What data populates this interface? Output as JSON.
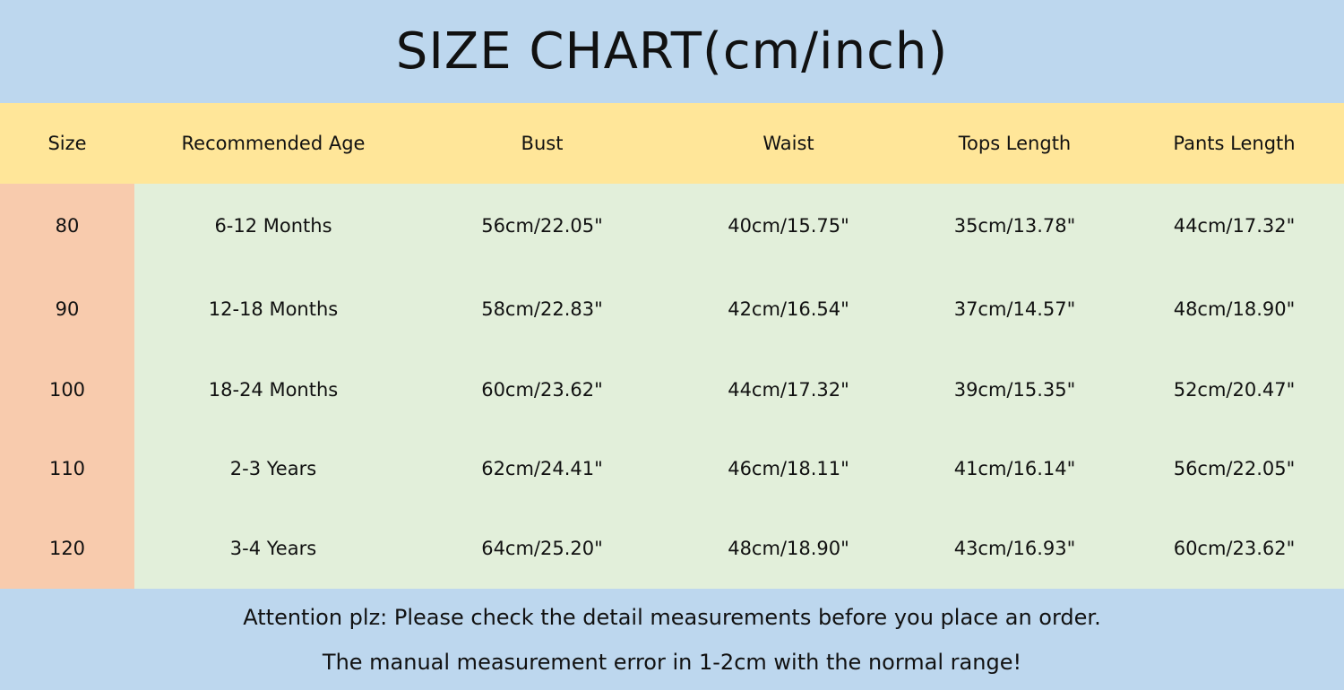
{
  "title": "SIZE CHART(cm/inch)",
  "colors": {
    "title_bg": "#bdd7ee",
    "header_bg": "#ffe699",
    "size_col_bg": "#f8cbad",
    "body_bg": "#e2efda",
    "footer_bg": "#bdd7ee"
  },
  "headers": [
    "Size",
    "Recommended Age",
    "Bust",
    "Waist",
    "Tops Length",
    "Pants Length"
  ],
  "rows": [
    [
      "80",
      "6-12 Months",
      "56cm/22.05\"",
      "40cm/15.75\"",
      "35cm/13.78\"",
      "44cm/17.32\""
    ],
    [
      "90",
      "12-18 Months",
      "58cm/22.83\"",
      "42cm/16.54\"",
      "37cm/14.57\"",
      "48cm/18.90\""
    ],
    [
      "100",
      "18-24 Months",
      "60cm/23.62\"",
      "44cm/17.32\"",
      "39cm/15.35\"",
      "52cm/20.47\""
    ],
    [
      "110",
      "2-3 Years",
      "62cm/24.41\"",
      "46cm/18.11\"",
      "41cm/16.14\"",
      "56cm/22.05\""
    ],
    [
      "120",
      "3-4 Years",
      "64cm/25.20\"",
      "48cm/18.90\"",
      "43cm/16.93\"",
      "60cm/23.62\""
    ]
  ],
  "footer": {
    "line1": "Attention plz:  Please check the detail measurements before you place an order.",
    "line2": "The manual measurement error in 1-2cm with the normal range!"
  }
}
